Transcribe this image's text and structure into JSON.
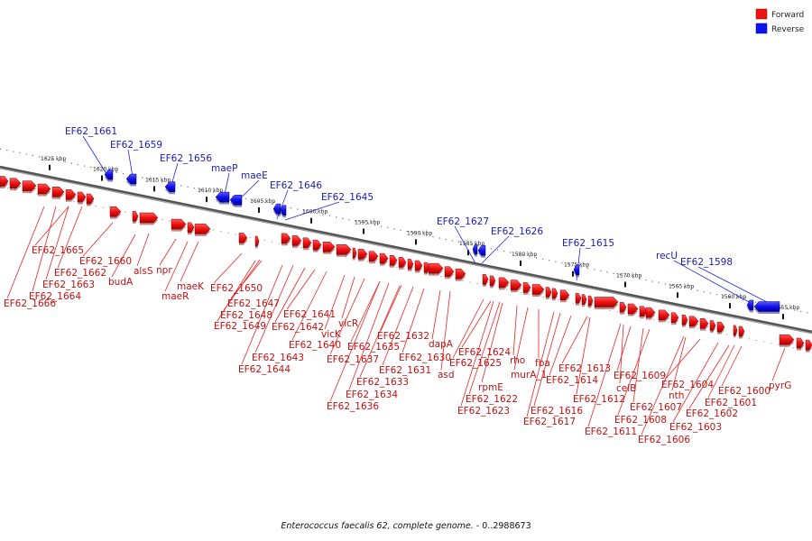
{
  "legend": {
    "forward_label": "Forward",
    "reverse_label": "Reverse",
    "forward_color": "#ee1111",
    "reverse_color": "#1111ee"
  },
  "caption": {
    "title": "Enterococcus faecalis 62, complete genome.",
    "range": " - 0..2988673"
  },
  "ruler": {
    "ticks": [
      "1625 kbp",
      "1620 kbp",
      "1615 kbp",
      "1610 kbp",
      "1605 kbp",
      "1600 kbp",
      "1595 kbp",
      "1590 kbp",
      "1585 kbp",
      "1580 kbp",
      "1575 kbp",
      "1570 kbp",
      "1565 kbp",
      "1560 kbp",
      "1555 kbp"
    ]
  },
  "genes": {
    "forward": [
      "EF62_1666",
      "EF62_1665",
      "EF62_1664",
      "EF62_1663",
      "EF62_1662",
      "EF62_1660",
      "budA",
      "alsS",
      "npr",
      "maeR",
      "maeK",
      "EF62_1650",
      "EF62_1649",
      "EF62_1648",
      "EF62_1647",
      "EF62_1644",
      "EF62_1643",
      "EF62_1642",
      "EF62_1641",
      "EF62_1640",
      "vicK",
      "vicR",
      "EF62_1637",
      "EF62_1636",
      "EF62_1635",
      "EF62_1634",
      "EF62_1633",
      "EF62_1632",
      "EF62_1631",
      "EF62_1630",
      "dapA",
      "asd",
      "EF62_1625",
      "EF62_1624",
      "EF62_1623",
      "EF62_1622",
      "rpmE",
      "rho",
      "murA_1",
      "fba",
      "EF62_1617",
      "EF62_1616",
      "EF62_1614",
      "EF62_1613",
      "EF62_1612",
      "EF62_1611",
      "celB",
      "EF62_1609",
      "EF62_1608",
      "EF62_1607",
      "EF62_1606",
      "nth",
      "EF62_1604",
      "EF62_1603",
      "EF62_1602",
      "EF62_1601",
      "EF62_1600",
      "pyrG"
    ],
    "reverse": [
      "EF62_1661",
      "EF62_1659",
      "EF62_1656",
      "maeP",
      "maeE",
      "EF62_1646",
      "EF62_1645",
      "EF62_1627",
      "EF62_1626",
      "EF62_1615",
      "recU",
      "EF62_1598"
    ]
  }
}
